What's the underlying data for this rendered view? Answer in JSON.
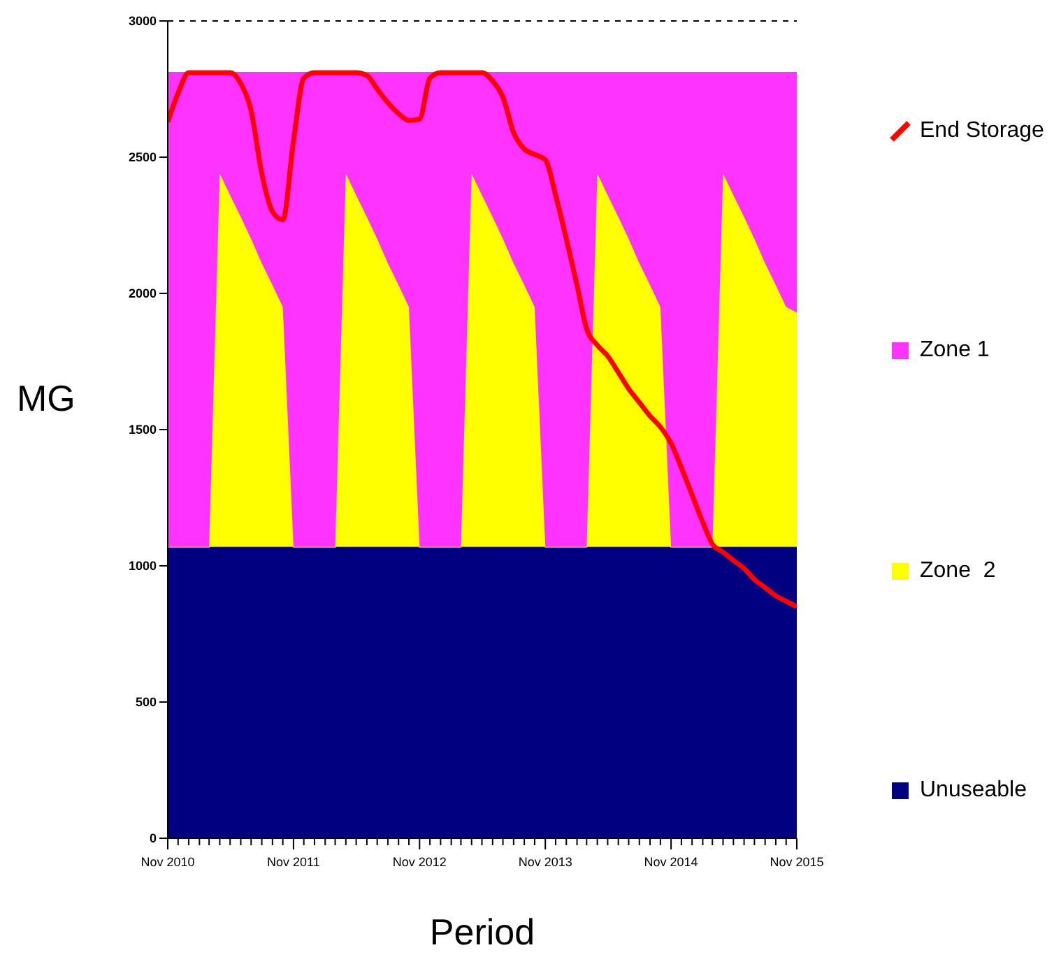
{
  "chart_data": {
    "type": "area",
    "xlabel": "Period",
    "ylabel": "MG",
    "stacked": true,
    "legend": "right",
    "grid": false,
    "x": [
      "2010-11",
      "2010-12",
      "2011-01",
      "2011-02",
      "2011-03",
      "2011-04",
      "2011-05",
      "2011-06",
      "2011-07",
      "2011-08",
      "2011-09",
      "2011-10",
      "2011-11",
      "2011-12",
      "2012-01",
      "2012-02",
      "2012-03",
      "2012-04",
      "2012-05",
      "2012-06",
      "2012-07",
      "2012-08",
      "2012-09",
      "2012-10",
      "2012-11",
      "2012-12",
      "2013-01",
      "2013-02",
      "2013-03",
      "2013-04",
      "2013-05",
      "2013-06",
      "2013-07",
      "2013-08",
      "2013-09",
      "2013-10",
      "2013-11",
      "2013-12",
      "2014-01",
      "2014-02",
      "2014-03",
      "2014-04",
      "2014-05",
      "2014-06",
      "2014-07",
      "2014-08",
      "2014-09",
      "2014-10",
      "2014-11",
      "2014-12",
      "2015-01",
      "2015-02",
      "2015-03",
      "2015-04",
      "2015-05",
      "2015-06",
      "2015-07",
      "2015-08",
      "2015-09",
      "2015-10",
      "2015-11"
    ],
    "series": [
      {
        "name": "Unuseable",
        "color": "#000080",
        "values": [
          1070,
          1070,
          1070,
          1070,
          1070,
          1070,
          1070,
          1070,
          1070,
          1070,
          1070,
          1070,
          1070,
          1070,
          1070,
          1070,
          1070,
          1070,
          1070,
          1070,
          1070,
          1070,
          1070,
          1070,
          1070,
          1070,
          1070,
          1070,
          1070,
          1070,
          1070,
          1070,
          1070,
          1070,
          1070,
          1070,
          1070,
          1070,
          1070,
          1070,
          1070,
          1070,
          1070,
          1070,
          1070,
          1070,
          1070,
          1070,
          1070,
          1070,
          1070,
          1070,
          1070,
          1070,
          1070,
          1070,
          1070,
          1070,
          1070,
          1070,
          1070
        ]
      },
      {
        "name": "Zone  2",
        "color": "#ffff00",
        "values": [
          0,
          0,
          0,
          0,
          0,
          1370,
          1290,
          1210,
          1130,
          1040,
          960,
          880,
          0,
          0,
          0,
          0,
          0,
          1370,
          1290,
          1210,
          1130,
          1040,
          960,
          880,
          0,
          0,
          0,
          0,
          0,
          1370,
          1290,
          1210,
          1130,
          1040,
          960,
          880,
          0,
          0,
          0,
          0,
          0,
          1370,
          1290,
          1210,
          1130,
          1040,
          960,
          880,
          0,
          0,
          0,
          0,
          0,
          1370,
          1290,
          1210,
          1130,
          1040,
          960,
          880,
          860
        ]
      },
      {
        "name": "Zone 1",
        "color": "#ff33ff",
        "values": [
          1740,
          1740,
          1740,
          1740,
          1740,
          370,
          450,
          530,
          610,
          700,
          780,
          860,
          1740,
          1740,
          1740,
          1740,
          1740,
          370,
          450,
          530,
          610,
          700,
          780,
          860,
          1740,
          1740,
          1740,
          1740,
          1740,
          370,
          450,
          530,
          610,
          700,
          780,
          860,
          1740,
          1740,
          1740,
          1740,
          1740,
          370,
          450,
          530,
          610,
          700,
          780,
          860,
          1740,
          1740,
          1740,
          1740,
          1740,
          370,
          450,
          530,
          610,
          700,
          780,
          860,
          880
        ]
      },
      {
        "name": "End Storage",
        "type": "line",
        "color": "#ff0000",
        "values": [
          2630,
          2735,
          2810,
          2810,
          2810,
          2810,
          2810,
          2770,
          2670,
          2440,
          2300,
          2270,
          2560,
          2790,
          2810,
          2810,
          2810,
          2810,
          2810,
          2800,
          2750,
          2700,
          2660,
          2635,
          2640,
          2790,
          2810,
          2810,
          2810,
          2810,
          2810,
          2780,
          2720,
          2590,
          2530,
          2510,
          2490,
          2360,
          2200,
          2030,
          1870,
          1810,
          1770,
          1710,
          1650,
          1600,
          1550,
          1510,
          1450,
          1360,
          1260,
          1160,
          1080,
          1050,
          1020,
          990,
          950,
          920,
          890,
          870,
          850
        ]
      }
    ],
    "xlim": [
      "2010-11",
      "2015-11"
    ],
    "xticks": [
      {
        "value": "2010-11",
        "label": "Nov 2010"
      },
      {
        "value": "2010-12",
        "label": null
      },
      {
        "value": "2011-01",
        "label": null
      },
      {
        "value": "2011-02",
        "label": null
      },
      {
        "value": "2011-03",
        "label": null
      },
      {
        "value": "2011-04",
        "label": null
      },
      {
        "value": "2011-05",
        "label": null
      },
      {
        "value": "2011-06",
        "label": null
      },
      {
        "value": "2011-07",
        "label": null
      },
      {
        "value": "2011-08",
        "label": null
      },
      {
        "value": "2011-09",
        "label": null
      },
      {
        "value": "2011-10",
        "label": null
      },
      {
        "value": "2011-11",
        "label": "Nov 2011"
      },
      {
        "value": "2011-12",
        "label": null
      },
      {
        "value": "2012-01",
        "label": null
      },
      {
        "value": "2012-02",
        "label": null
      },
      {
        "value": "2012-03",
        "label": null
      },
      {
        "value": "2012-04",
        "label": null
      },
      {
        "value": "2012-05",
        "label": null
      },
      {
        "value": "2012-06",
        "label": null
      },
      {
        "value": "2012-07",
        "label": null
      },
      {
        "value": "2012-08",
        "label": null
      },
      {
        "value": "2012-09",
        "label": null
      },
      {
        "value": "2012-10",
        "label": null
      },
      {
        "value": "2012-11",
        "label": "Nov 2012"
      },
      {
        "value": "2012-12",
        "label": null
      },
      {
        "value": "2013-01",
        "label": null
      },
      {
        "value": "2013-02",
        "label": null
      },
      {
        "value": "2013-03",
        "label": null
      },
      {
        "value": "2013-04",
        "label": null
      },
      {
        "value": "2013-05",
        "label": null
      },
      {
        "value": "2013-06",
        "label": null
      },
      {
        "value": "2013-07",
        "label": null
      },
      {
        "value": "2013-08",
        "label": null
      },
      {
        "value": "2013-09",
        "label": null
      },
      {
        "value": "2013-10",
        "label": null
      },
      {
        "value": "2013-11",
        "label": "Nov 2013"
      },
      {
        "value": "2013-12",
        "label": null
      },
      {
        "value": "2014-01",
        "label": null
      },
      {
        "value": "2014-02",
        "label": null
      },
      {
        "value": "2014-03",
        "label": null
      },
      {
        "value": "2014-04",
        "label": null
      },
      {
        "value": "2014-05",
        "label": null
      },
      {
        "value": "2014-06",
        "label": null
      },
      {
        "value": "2014-07",
        "label": null
      },
      {
        "value": "2014-08",
        "label": null
      },
      {
        "value": "2014-09",
        "label": null
      },
      {
        "value": "2014-10",
        "label": null
      },
      {
        "value": "2014-11",
        "label": "Nov 2014"
      },
      {
        "value": "2014-12",
        "label": null
      },
      {
        "value": "2015-01",
        "label": null
      },
      {
        "value": "2015-02",
        "label": null
      },
      {
        "value": "2015-03",
        "label": null
      },
      {
        "value": "2015-04",
        "label": null
      },
      {
        "value": "2015-05",
        "label": null
      },
      {
        "value": "2015-06",
        "label": null
      },
      {
        "value": "2015-07",
        "label": null
      },
      {
        "value": "2015-08",
        "label": null
      },
      {
        "value": "2015-09",
        "label": null
      },
      {
        "value": "2015-10",
        "label": null
      },
      {
        "value": "2015-11",
        "label": "Nov 2015"
      }
    ],
    "ylim": [
      0,
      3000
    ],
    "yticks": [
      0,
      500,
      1000,
      1500,
      2000,
      2500,
      3000
    ],
    "ref_lines": [
      {
        "axis": "y",
        "value": 3000,
        "line_style": "dashed",
        "color": "#000000"
      }
    ]
  }
}
